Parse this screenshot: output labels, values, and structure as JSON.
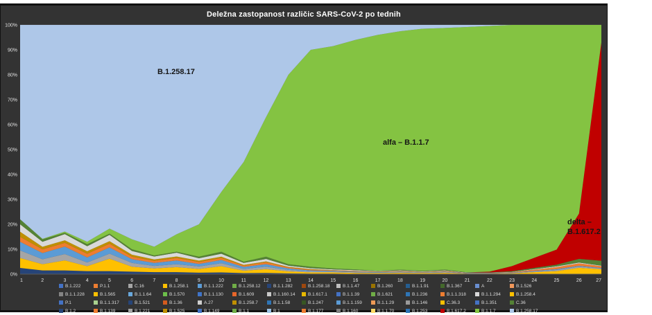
{
  "title": "Deležna zastopanost različic SARS-CoV-2 po tednih",
  "colors": {
    "panel_background": "#333333",
    "plot_background": "#3b3b3b",
    "gridline": "#484848",
    "axis_text": "#e2e2e2",
    "title_text": "#ffffff",
    "b1_258_17_area": "#aec7e8",
    "alfa_area": "#84c342",
    "delta_area": "#c00000"
  },
  "chart_data": {
    "type": "area",
    "stacked": true,
    "normalized_percent": true,
    "title": "Deležna zastopanost različic SARS-CoV-2 po tednih",
    "xlabel": "",
    "ylabel": "",
    "x": [
      1,
      2,
      3,
      4,
      5,
      6,
      7,
      8,
      9,
      10,
      11,
      12,
      13,
      14,
      15,
      16,
      17,
      18,
      19,
      20,
      21,
      22,
      23,
      24,
      25,
      26,
      27
    ],
    "y_ticks": [
      "0%",
      "10%",
      "20%",
      "30%",
      "40%",
      "50%",
      "60%",
      "70%",
      "80%",
      "90%",
      "100%"
    ],
    "ylim": [
      0,
      100
    ],
    "grid": true,
    "legend_position": "bottom",
    "annotations": [
      {
        "text": "B.1.258.17"
      },
      {
        "text": "alfa – B.1.1.7"
      },
      {
        "text": "delta –\nB.1.617.2"
      }
    ],
    "series": [
      {
        "name": "B.1.2",
        "color": "#264478",
        "values": [
          2.5,
          1.5,
          1.5,
          1.2,
          1.2,
          1,
          0.8,
          0.8,
          0.6,
          0.7,
          0.4,
          0.5,
          0.3,
          0.2,
          0.2,
          0.1,
          0.1,
          0.1,
          0.1,
          0.1,
          0,
          0,
          0,
          0,
          0,
          0,
          0
        ]
      },
      {
        "name": "B.1.258.1",
        "color": "#ffc000",
        "values": [
          4,
          2.5,
          4,
          2,
          5,
          2,
          1.5,
          2,
          1.5,
          2.5,
          1,
          1.5,
          0.8,
          0.5,
          0.5,
          0.4,
          0.3,
          0.4,
          0.3,
          0.4,
          0.2,
          0.2,
          0.3,
          0.8,
          1.2,
          2.5,
          2
        ]
      },
      {
        "name": "B.1.221",
        "color": "#a5a5a5",
        "values": [
          3,
          2,
          2.5,
          1.5,
          2,
          1.5,
          1,
          1.2,
          1,
          1.2,
          0.7,
          1,
          0.6,
          0.4,
          0.3,
          0.3,
          0.2,
          0.3,
          0.2,
          0.3,
          0.1,
          0.1,
          0.2,
          0.3,
          0.5,
          0.5,
          0.3
        ]
      },
      {
        "name": "B.1.1.222",
        "color": "#5b9bd5",
        "values": [
          3.5,
          2.5,
          3,
          2,
          2.5,
          1.5,
          1.2,
          1.5,
          1,
          1.3,
          0.8,
          1,
          0.6,
          0.4,
          0.3,
          0.2,
          0.2,
          0.2,
          0.1,
          0.2,
          0.1,
          0.1,
          0.1,
          0.2,
          0.3,
          0.3,
          0.2
        ]
      },
      {
        "name": "B.1.177",
        "color": "#ed7d31",
        "values": [
          2,
          1.5,
          1.5,
          1.5,
          1.5,
          1,
          0.8,
          1,
          0.8,
          0.8,
          0.5,
          0.8,
          0.4,
          0.3,
          0.2,
          0.2,
          0.1,
          0.2,
          0.1,
          0.2,
          0.1,
          0.1,
          0.2,
          0.5,
          0.8,
          1,
          0.7
        ]
      },
      {
        "name": "B.1.258.7",
        "color": "#bf8f00",
        "values": [
          2,
          1,
          1,
          1,
          1,
          0.8,
          0.6,
          0.6,
          0.5,
          0.5,
          0.3,
          0.3,
          0.2,
          0.2,
          0.1,
          0.1,
          0.1,
          0.1,
          0.1,
          0.1,
          0,
          0,
          0,
          0,
          0,
          0,
          0
        ]
      },
      {
        "name": "B.1.1.294",
        "color": "#d9d9d9",
        "values": [
          3,
          2,
          2.5,
          2,
          2.5,
          1.5,
          1.2,
          1.5,
          1,
          1.2,
          0.8,
          1,
          0.5,
          0.4,
          0.3,
          0.3,
          0.2,
          0.2,
          0.2,
          0.2,
          0.1,
          0.1,
          0.1,
          0.2,
          0.3,
          0.3,
          0.2
        ]
      },
      {
        "name": "C.36",
        "color": "#548235",
        "values": [
          2,
          1,
          0.5,
          0.8,
          0.5,
          0.7,
          0.4,
          0.4,
          0.6,
          0.8,
          0.5,
          0.9,
          0.6,
          0.6,
          0.4,
          0.3,
          0.1,
          0.3,
          0.2,
          0.3,
          0.1,
          0.1,
          0.3,
          0.5,
          0.7,
          1.5,
          2
        ]
      },
      {
        "name": "B.1.617.2",
        "color": "#c00000",
        "values": [
          0,
          0,
          0,
          0,
          0,
          0,
          0,
          0,
          0,
          0,
          0,
          0,
          0,
          0,
          0,
          0,
          0,
          0,
          0,
          0,
          0,
          0.3,
          2,
          4,
          6,
          18,
          88
        ]
      },
      {
        "name": "B.1.1.7",
        "color": "#84c342",
        "values": [
          0,
          0.2,
          0.5,
          1,
          2,
          4,
          3.5,
          7,
          13,
          24,
          40,
          56,
          76,
          87,
          89,
          92,
          94.5,
          95,
          95.5,
          95,
          96.5,
          97.5,
          95.5,
          92.5,
          89.5,
          75,
          7
        ]
      },
      {
        "name": "B.1.258.17",
        "color": "#aec7e8",
        "values": [
          78,
          86,
          82.5,
          87,
          81.5,
          86,
          89,
          84,
          80,
          67,
          55,
          37,
          20,
          10,
          8.5,
          6,
          4,
          2.5,
          1.5,
          1.2,
          0.8,
          0.4,
          0,
          0,
          0,
          0,
          0
        ]
      }
    ]
  },
  "legend": {
    "rows": [
      [
        {
          "label": "B.1.222",
          "color": "#4472c4"
        },
        {
          "label": "P.1.1",
          "color": "#ed7d31"
        },
        {
          "label": "C.16",
          "color": "#a5a5a5"
        },
        {
          "label": "B.1.258.1",
          "color": "#ffc000"
        },
        {
          "label": "B.1.1.222",
          "color": "#5b9bd5"
        },
        {
          "label": "B.1.258.12",
          "color": "#70ad47"
        },
        {
          "label": "B.1.1.282",
          "color": "#264478"
        },
        {
          "label": "B.1.258.18",
          "color": "#9e480e"
        },
        {
          "label": "B.1.1.47",
          "color": "#bfbfbf"
        },
        {
          "label": "B.1.260",
          "color": "#997300"
        },
        {
          "label": "B.1.1.91",
          "color": "#255e91"
        },
        {
          "label": "B.1.367",
          "color": "#43682b"
        },
        {
          "label": "A",
          "color": "#698ed0"
        },
        {
          "label": "B.1.526",
          "color": "#f1975a"
        }
      ],
      [
        {
          "label": "B.1.1.228",
          "color": "#848484"
        },
        {
          "label": "B.1.565",
          "color": "#ffc000"
        },
        {
          "label": "B.1.1.64",
          "color": "#69a8dc"
        },
        {
          "label": "B.1.570",
          "color": "#6cbf4a"
        },
        {
          "label": "B.1.1.130",
          "color": "#3f74c9"
        },
        {
          "label": "B.1.609",
          "color": "#e8662a"
        },
        {
          "label": "B.1.160.14",
          "color": "#c9c9c9"
        },
        {
          "label": "B.1.617.1",
          "color": "#e8b800"
        },
        {
          "label": "B.1.1.39",
          "color": "#4472c4"
        },
        {
          "label": "B.1.621",
          "color": "#70ad47"
        },
        {
          "label": "B.1.236",
          "color": "#2e75b6"
        },
        {
          "label": "B.1.1.318",
          "color": "#ed7d31"
        },
        {
          "label": "B.1.1.294",
          "color": "#d9d9d9"
        },
        {
          "label": "B.1.258.4",
          "color": "#ffc000"
        }
      ],
      [
        {
          "label": "P.1",
          "color": "#4472c4"
        },
        {
          "label": "B.1.1.317",
          "color": "#a9d18e"
        },
        {
          "label": "B.1.521",
          "color": "#264478"
        },
        {
          "label": "B.1.36",
          "color": "#d45b1e"
        },
        {
          "label": "A.27",
          "color": "#cfcfcf"
        },
        {
          "label": "B.1.258.7",
          "color": "#bf8f00"
        },
        {
          "label": "B.1.1.58",
          "color": "#2e75b6"
        },
        {
          "label": "B.1.247",
          "color": "#375623"
        },
        {
          "label": "B.1.1.159",
          "color": "#5b9bd5"
        },
        {
          "label": "B.1.1.29",
          "color": "#ed9a56"
        },
        {
          "label": "B.1.146",
          "color": "#9a9a9a"
        },
        {
          "label": "C.36.3",
          "color": "#ffc000"
        },
        {
          "label": "B.1.351",
          "color": "#4472c4"
        },
        {
          "label": "C.36",
          "color": "#548235"
        }
      ],
      [
        {
          "label": "B.1.2",
          "color": "#264478"
        },
        {
          "label": "B.1.139",
          "color": "#ed7d31"
        },
        {
          "label": "B.1.221",
          "color": "#a5a5a5"
        },
        {
          "label": "B.1.525",
          "color": "#bf8f00"
        },
        {
          "label": "B.1.149",
          "color": "#4472c4"
        },
        {
          "label": "B.1.1",
          "color": "#70ad47"
        },
        {
          "label": "B.1",
          "color": "#9dc3e6"
        },
        {
          "label": "B.1.177",
          "color": "#ed7d31"
        },
        {
          "label": "B.1.160",
          "color": "#7f7f7f"
        },
        {
          "label": "B.1.1.70",
          "color": "#ffd966"
        },
        {
          "label": "B.1.253",
          "color": "#2e75b6"
        },
        {
          "label": "B.1.617.2",
          "color": "#c00000"
        },
        {
          "label": "B.1.1.7",
          "color": "#84c342"
        },
        {
          "label": "B.1.258.17",
          "color": "#aec7e8"
        }
      ]
    ]
  }
}
